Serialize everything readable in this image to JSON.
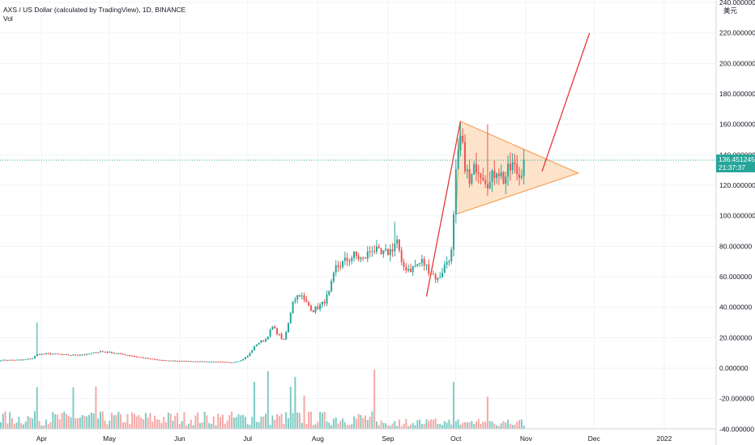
{
  "title": "AXS / US Dollar (calculated by TradingView), 1D, BINANCE",
  "indicator": "Vol",
  "currency_unit": "美元",
  "last_price": "136.451245",
  "countdown": "21:37:37",
  "colors": {
    "up": "#26a69a",
    "down": "#ef5350",
    "up_volume": "#80cbc4",
    "down_volume": "#f4a9a6",
    "triangle_fill": "#fcd9b8",
    "triangle_stroke": "#f5923e",
    "trend_line": "#e53935",
    "grid": "#f0f3fa",
    "axis_text": "#131722"
  },
  "chart_data": {
    "type": "candlestick",
    "ylim": [
      -40,
      240
    ],
    "y_ticks": [
      "240.000000",
      "220.000000",
      "200.000000",
      "180.000000",
      "160.000000",
      "140.000000",
      "120.000000",
      "100.000000",
      "80.000000",
      "60.000000",
      "40.000000",
      "20.000000",
      "0.000000",
      "-20.000000",
      "-40.000000"
    ],
    "x_ticks": [
      {
        "label": "Apr",
        "day": 18
      },
      {
        "label": "May",
        "day": 48
      },
      {
        "label": "Jun",
        "day": 79
      },
      {
        "label": "Jul",
        "day": 109
      },
      {
        "label": "Aug",
        "day": 140
      },
      {
        "label": "Sep",
        "day": 171
      },
      {
        "label": "Oct",
        "day": 201
      },
      {
        "label": "Nov",
        "day": 232
      },
      {
        "label": "Dec",
        "day": 262
      },
      {
        "label": "2022",
        "day": 293
      }
    ],
    "price_anchors": [
      [
        0,
        5.2
      ],
      [
        10,
        5.5
      ],
      [
        14,
        6.5
      ],
      [
        16,
        9
      ],
      [
        22,
        9.5
      ],
      [
        30,
        8.5
      ],
      [
        38,
        9
      ],
      [
        44,
        11
      ],
      [
        50,
        10
      ],
      [
        58,
        8
      ],
      [
        66,
        6
      ],
      [
        72,
        5
      ],
      [
        85,
        4.5
      ],
      [
        102,
        3.8
      ],
      [
        106,
        5
      ],
      [
        109,
        8
      ],
      [
        113,
        16
      ],
      [
        117,
        19
      ],
      [
        120,
        27
      ],
      [
        125,
        18
      ],
      [
        127,
        29
      ],
      [
        129,
        45
      ],
      [
        132,
        49
      ],
      [
        134,
        44
      ],
      [
        138,
        38
      ],
      [
        142,
        42
      ],
      [
        145,
        49
      ],
      [
        148,
        66
      ],
      [
        152,
        70
      ],
      [
        156,
        74
      ],
      [
        160,
        71
      ],
      [
        164,
        79
      ],
      [
        168,
        74
      ],
      [
        172,
        77
      ],
      [
        175,
        84
      ],
      [
        177,
        67
      ],
      [
        181,
        65
      ],
      [
        186,
        70
      ],
      [
        190,
        63
      ],
      [
        193,
        58
      ],
      [
        197,
        70
      ],
      [
        199,
        76
      ],
      [
        200,
        98
      ],
      [
        201,
        126
      ],
      [
        203,
        150
      ],
      [
        205,
        135
      ],
      [
        207,
        120
      ],
      [
        210,
        134
      ],
      [
        213,
        128
      ],
      [
        216,
        121
      ],
      [
        219,
        132
      ],
      [
        222,
        124
      ],
      [
        226,
        133
      ],
      [
        229,
        126
      ],
      [
        231,
        136.45
      ]
    ],
    "spikes": [
      {
        "day": 16,
        "high": 30
      },
      {
        "day": 32,
        "high": 2
      },
      {
        "day": 174,
        "high": 96
      },
      {
        "day": 203,
        "high": 162
      },
      {
        "day": 215,
        "high": 160
      }
    ],
    "volume_spikes": [
      16,
      32,
      42,
      112,
      118,
      128,
      130,
      134,
      165,
      200,
      215
    ],
    "volume_axis_bottom": -40,
    "pattern_triangle": [
      {
        "day": 203,
        "price": 162
      },
      {
        "day": 201,
        "price": 101
      },
      {
        "day": 255,
        "price": 128
      }
    ],
    "trend_lines": [
      [
        {
          "day": 188,
          "price": 47
        },
        {
          "day": 203,
          "price": 162
        }
      ],
      [
        {
          "day": 239,
          "price": 129
        },
        {
          "day": 260,
          "price": 220
        }
      ]
    ]
  }
}
